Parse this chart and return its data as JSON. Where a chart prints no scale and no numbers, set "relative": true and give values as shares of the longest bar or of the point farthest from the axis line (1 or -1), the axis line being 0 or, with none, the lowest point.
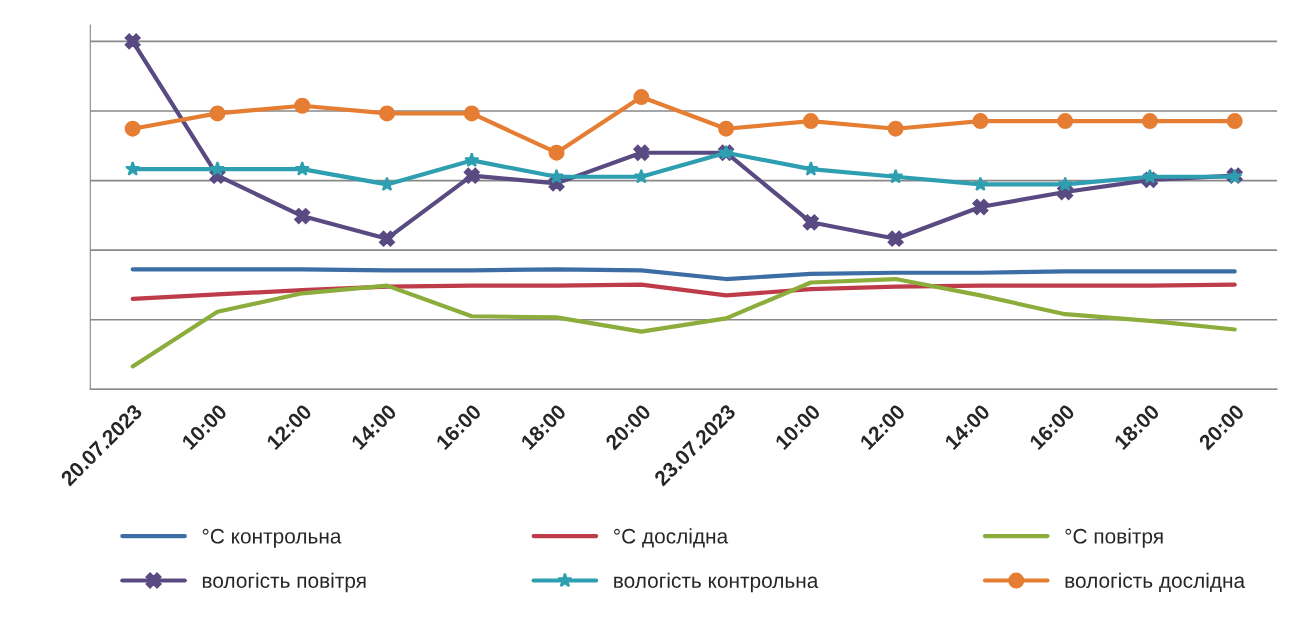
{
  "chart_data": {
    "type": "line",
    "relative": true,
    "grid": "y",
    "legend": "bottom",
    "categories": [
      "20.07.2023",
      "10:00",
      "12:00",
      "14:00",
      "16:00",
      "18:00",
      "20:00",
      "23.07.2023",
      "10:00",
      "12:00",
      "14:00",
      "16:00",
      "18:00",
      "20:00"
    ],
    "series": [
      {
        "name": "°C контрольна",
        "color": "#3c6ea5",
        "marker": "none",
        "values": [
          0.345,
          0.345,
          0.345,
          0.342,
          0.342,
          0.345,
          0.342,
          0.317,
          0.332,
          0.335,
          0.335,
          0.339,
          0.339,
          0.339
        ]
      },
      {
        "name": "°C дослідна",
        "color": "#be3c4a",
        "marker": "none",
        "values": [
          0.26,
          0.273,
          0.285,
          0.295,
          0.298,
          0.298,
          0.301,
          0.27,
          0.288,
          0.295,
          0.298,
          0.298,
          0.298,
          0.301
        ]
      },
      {
        "name": "°C повітря",
        "color": "#8cac3c",
        "marker": "none",
        "values": [
          0.066,
          0.223,
          0.276,
          0.298,
          0.21,
          0.207,
          0.166,
          0.204,
          0.307,
          0.317,
          0.27,
          0.216,
          0.197,
          0.172
        ]
      },
      {
        "name": "вологість повітря",
        "color": "#5a4a82",
        "marker": "cross",
        "values": [
          1,
          0.614,
          0.498,
          0.433,
          0.614,
          0.592,
          0.68,
          0.68,
          0.48,
          0.433,
          0.524,
          0.567,
          0.602,
          0.614
        ]
      },
      {
        "name": "вологість контрольна",
        "color": "#2e9fb0",
        "marker": "star",
        "values": [
          0.633,
          0.633,
          0.633,
          0.589,
          0.658,
          0.611,
          0.611,
          0.68,
          0.633,
          0.611,
          0.589,
          0.589,
          0.611,
          0.611
        ]
      },
      {
        "name": "вологість дослідна",
        "color": "#e57d32",
        "marker": "circle",
        "values": [
          0.749,
          0.793,
          0.815,
          0.793,
          0.793,
          0.68,
          0.84,
          0.749,
          0.771,
          0.749,
          0.771,
          0.771,
          0.771,
          0.771
        ]
      }
    ]
  }
}
